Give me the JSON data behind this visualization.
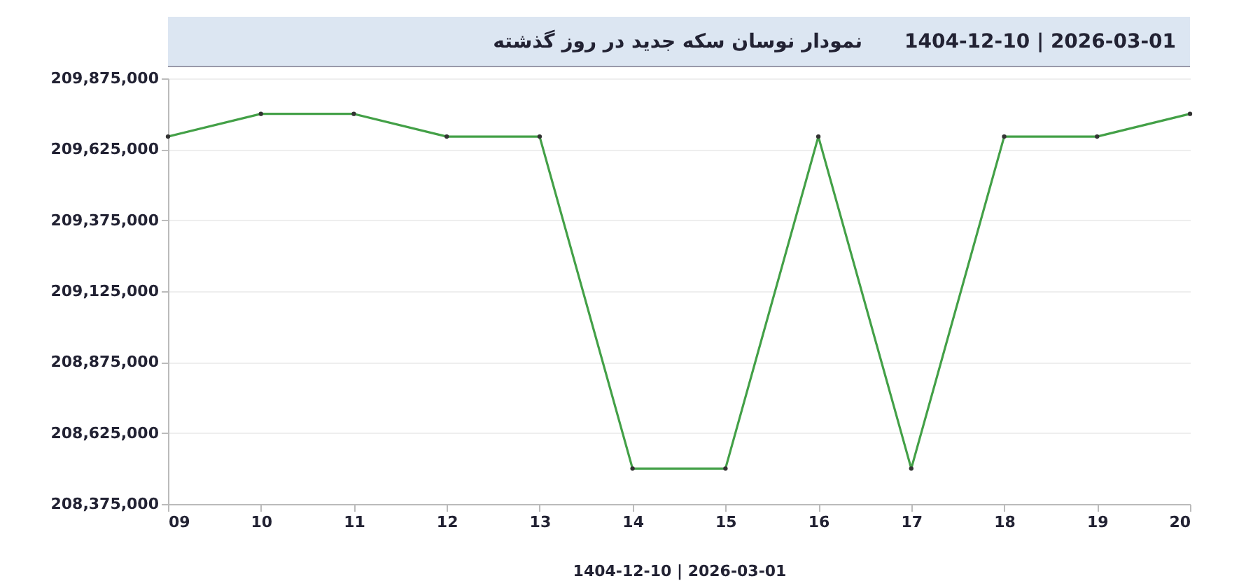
{
  "chart_data": {
    "type": "line",
    "title": "نمودار نوسان سکه جدید در روز گذشته",
    "subtitle": "1404-12-10  |  2026-03-01",
    "xlabel": "1404-12-10  |  2026-03-01",
    "categories": [
      "09",
      "10",
      "11",
      "12",
      "13",
      "14",
      "15",
      "16",
      "17",
      "18",
      "19",
      "20"
    ],
    "series": [
      {
        "color": "#43a047",
        "values": [
          209670000,
          209750000,
          209750000,
          209670000,
          209670000,
          208500000,
          208500000,
          209670000,
          208500000,
          209670000,
          209670000,
          209750000
        ]
      }
    ],
    "ylim": [
      208375000,
      209875000
    ],
    "yticks": [
      {
        "value": 208375000,
        "label": "208,375,000"
      },
      {
        "value": 208625000,
        "label": "208,625,000"
      },
      {
        "value": 208875000,
        "label": "208,875,000"
      },
      {
        "value": 209125000,
        "label": "209,125,000"
      },
      {
        "value": 209375000,
        "label": "209,375,000"
      },
      {
        "value": 209625000,
        "label": "209,625,000"
      },
      {
        "value": 209875000,
        "label": "209,875,000"
      }
    ],
    "grid": "y",
    "marker": "circle",
    "line_style": "solid"
  }
}
